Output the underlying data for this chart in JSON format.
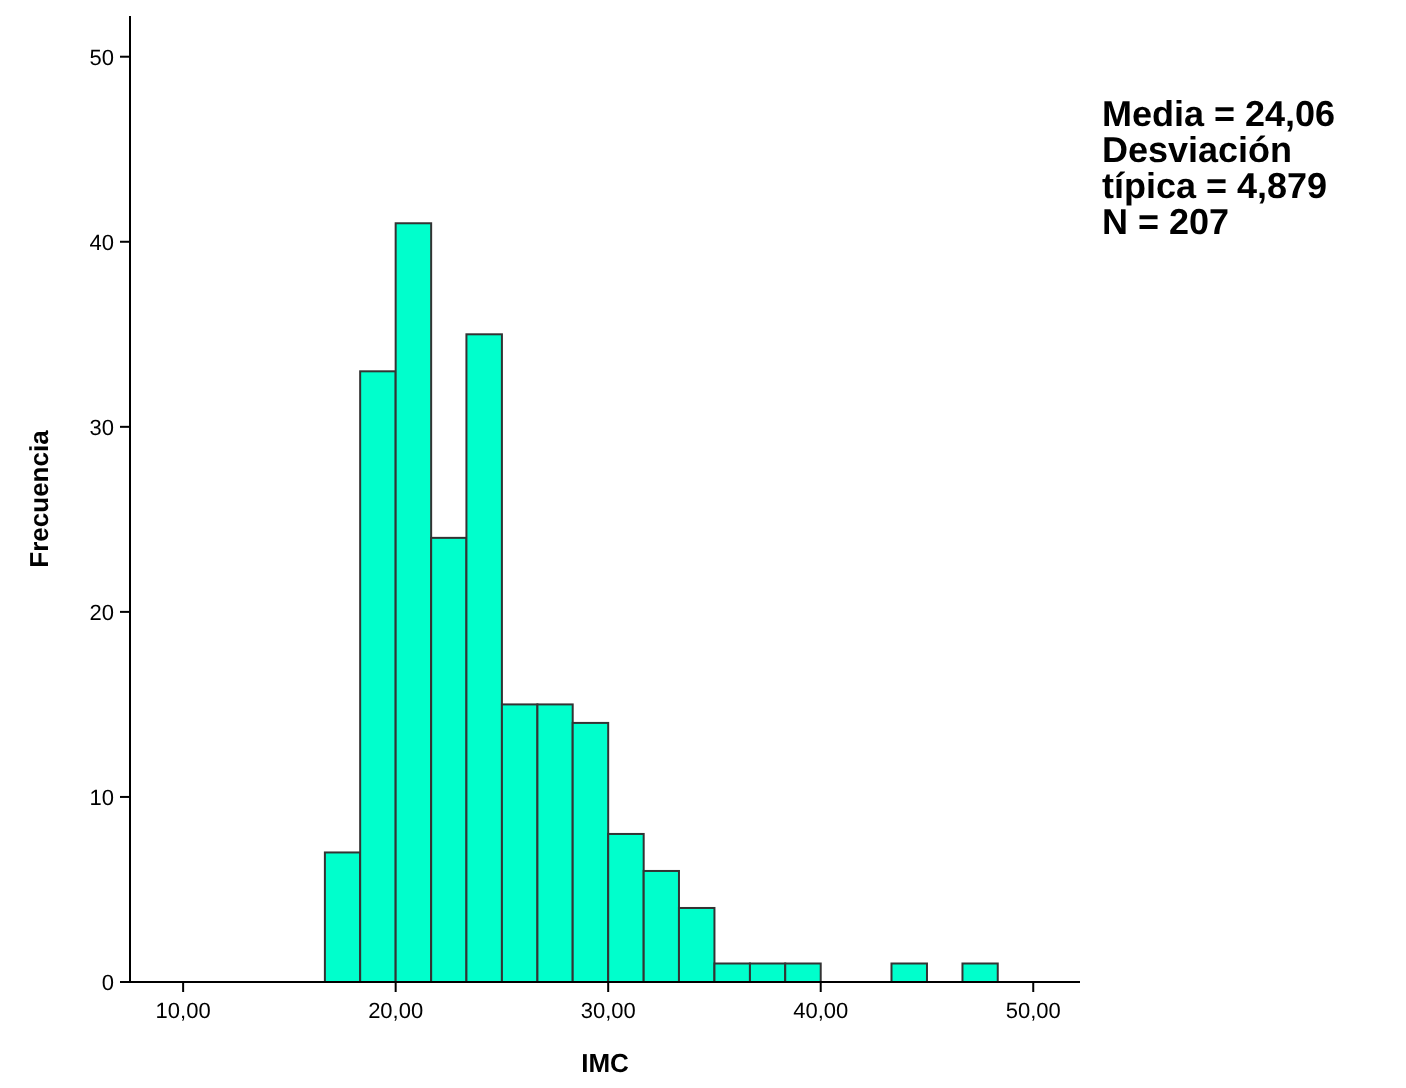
{
  "chart_data": {
    "type": "histogram",
    "xlabel": "IMC",
    "ylabel": "Frecuencia",
    "bins": [
      16.67,
      18.33,
      20,
      21.67,
      23.33,
      25,
      26.67,
      28.33,
      30,
      31.67,
      33.33,
      35,
      36.67,
      38.33,
      40,
      41.67,
      43.33,
      45,
      46.67,
      48.33
    ],
    "values": [
      7,
      33,
      41,
      24,
      35,
      15,
      15,
      14,
      8,
      6,
      4,
      1,
      1,
      1,
      0,
      0,
      1,
      0,
      1
    ],
    "color": "#00ffcc",
    "xlim": [
      7.5,
      52.2
    ],
    "ylim": [
      0,
      52.2
    ],
    "xticks": [
      {
        "value": 10,
        "label": "10,00"
      },
      {
        "value": 20,
        "label": "20,00"
      },
      {
        "value": 30,
        "label": "30,00"
      },
      {
        "value": 40,
        "label": "40,00"
      },
      {
        "value": 50,
        "label": "50,00"
      }
    ],
    "yticks": [
      0,
      10,
      20,
      30,
      40,
      50
    ],
    "annotations": [
      "Media = 24,06",
      "Desviación típica = 4,879",
      "N = 207"
    ]
  }
}
